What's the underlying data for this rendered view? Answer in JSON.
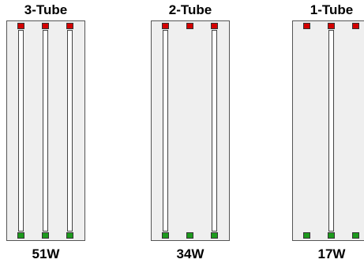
{
  "colors": {
    "housing": "#efefef",
    "tube": "#ffffff",
    "top_pin": "#d40000",
    "bottom_pin": "#1d9a1d"
  },
  "fixtures": [
    {
      "title": "3-Tube",
      "watt": "51W",
      "slots": [
        true,
        true,
        true
      ]
    },
    {
      "title": "2-Tube",
      "watt": "34W",
      "slots": [
        true,
        false,
        true
      ]
    },
    {
      "title": "1-Tube",
      "watt": "17W",
      "slots": [
        false,
        true,
        false
      ]
    }
  ]
}
